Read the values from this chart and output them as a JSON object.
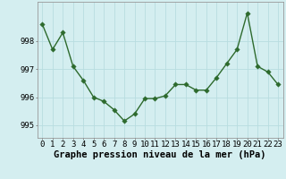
{
  "x": [
    0,
    1,
    2,
    3,
    4,
    5,
    6,
    7,
    8,
    9,
    10,
    11,
    12,
    13,
    14,
    15,
    16,
    17,
    18,
    19,
    20,
    21,
    22,
    23
  ],
  "y": [
    998.6,
    997.7,
    998.3,
    997.1,
    996.6,
    996.0,
    995.85,
    995.55,
    995.15,
    995.4,
    995.95,
    995.95,
    996.05,
    996.45,
    996.45,
    996.25,
    996.25,
    996.7,
    997.2,
    997.7,
    999.0,
    997.1,
    996.9,
    996.45
  ],
  "line_color": "#2d6a2d",
  "marker_color": "#2d6a2d",
  "bg_color": "#d4eef0",
  "grid_color": "#b8dde0",
  "xlabel": "Graphe pression niveau de la mer (hPa)",
  "yticks": [
    995,
    996,
    997,
    998
  ],
  "ylim": [
    994.55,
    999.4
  ],
  "xlim": [
    -0.5,
    23.5
  ],
  "tick_fontsize": 6.5,
  "label_fontsize": 7.5,
  "marker_size": 2.8,
  "linewidth": 1.0
}
